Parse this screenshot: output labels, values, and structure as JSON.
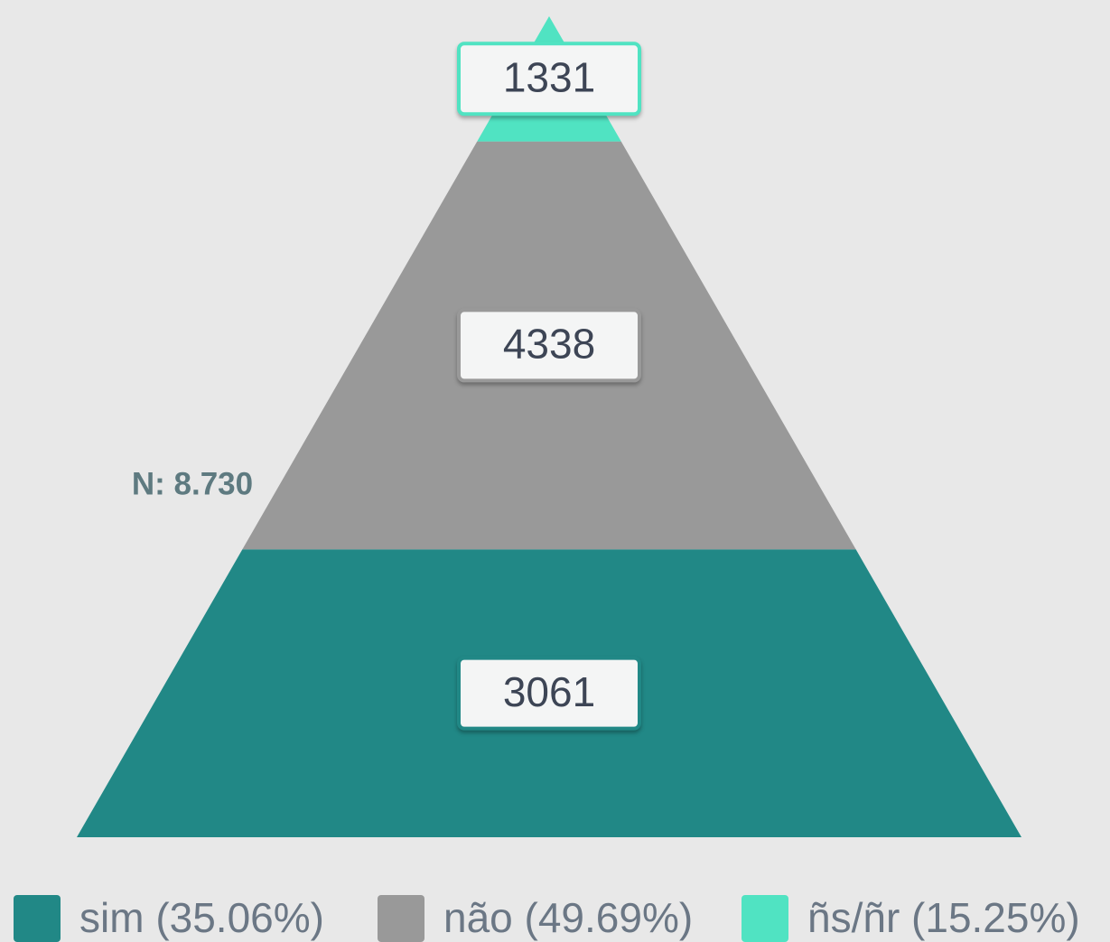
{
  "chart_data": {
    "type": "pyramid",
    "annotation": "N: 8.730",
    "series": [
      {
        "name": "sim (35.06%)",
        "color": "#218886",
        "values": [
          3061
        ]
      },
      {
        "name": "não (49.69%)",
        "color": "#999999",
        "values": [
          4338
        ]
      },
      {
        "name": "ñs/ñr (15.25%)",
        "color": "#50e3c2",
        "values": [
          1331
        ]
      }
    ]
  }
}
